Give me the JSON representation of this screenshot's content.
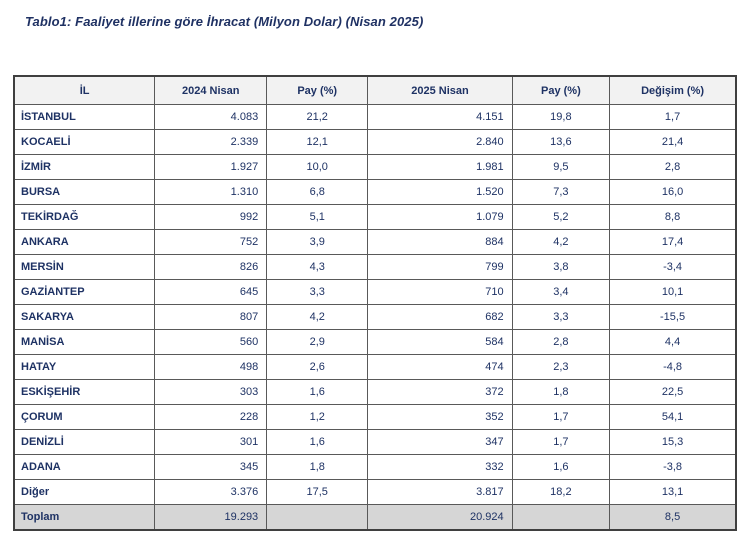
{
  "title": "Tablo1: Faaliyet illerine göre İhracat (Milyon Dolar) (Nisan 2025)",
  "table": {
    "columns": [
      "İL",
      "2024 Nisan",
      "Pay (%)",
      "2025 Nisan",
      "Pay (%)",
      "Değişim (%)"
    ],
    "rows": [
      [
        "İSTANBUL",
        "4.083",
        "21,2",
        "4.151",
        "19,8",
        "1,7"
      ],
      [
        "KOCAELİ",
        "2.339",
        "12,1",
        "2.840",
        "13,6",
        "21,4"
      ],
      [
        "İZMİR",
        "1.927",
        "10,0",
        "1.981",
        "9,5",
        "2,8"
      ],
      [
        "BURSA",
        "1.310",
        "6,8",
        "1.520",
        "7,3",
        "16,0"
      ],
      [
        "TEKİRDAĞ",
        "992",
        "5,1",
        "1.079",
        "5,2",
        "8,8"
      ],
      [
        "ANKARA",
        "752",
        "3,9",
        "884",
        "4,2",
        "17,4"
      ],
      [
        "MERSİN",
        "826",
        "4,3",
        "799",
        "3,8",
        "-3,4"
      ],
      [
        "GAZİANTEP",
        "645",
        "3,3",
        "710",
        "3,4",
        "10,1"
      ],
      [
        "SAKARYA",
        "807",
        "4,2",
        "682",
        "3,3",
        "-15,5"
      ],
      [
        "MANİSA",
        "560",
        "2,9",
        "584",
        "2,8",
        "4,4"
      ],
      [
        "HATAY",
        "498",
        "2,6",
        "474",
        "2,3",
        "-4,8"
      ],
      [
        "ESKİŞEHİR",
        "303",
        "1,6",
        "372",
        "1,8",
        "22,5"
      ],
      [
        "ÇORUM",
        "228",
        "1,2",
        "352",
        "1,7",
        "54,1"
      ],
      [
        "DENİZLİ",
        "301",
        "1,6",
        "347",
        "1,7",
        "15,3"
      ],
      [
        "ADANA",
        "345",
        "1,8",
        "332",
        "1,6",
        "-3,8"
      ],
      [
        "Diğer",
        "3.376",
        "17,5",
        "3.817",
        "18,2",
        "13,1"
      ]
    ],
    "total_row": [
      "Toplam",
      "19.293",
      "",
      "20.924",
      "",
      "8,5"
    ],
    "column_widths_pct": [
      19.5,
      15.5,
      14,
      20,
      13.5,
      17.5
    ],
    "colors": {
      "text": "#1e3264",
      "title": "#1f3163",
      "header_bg": "#f2f2f2",
      "total_bg": "#d6d6d6",
      "border": "#595959",
      "outer_border": "#3f3f3f"
    }
  },
  "chart_data": {
    "type": "table",
    "title": "Tablo1: Faaliyet illerine göre İhracat (Milyon Dolar) (Nisan 2025)",
    "columns": [
      "İL",
      "2024 Nisan",
      "Pay (%)",
      "2025 Nisan",
      "Pay (%)",
      "Değişim (%)"
    ],
    "rows": [
      [
        "İSTANBUL",
        4083,
        21.2,
        4151,
        19.8,
        1.7
      ],
      [
        "KOCAELİ",
        2339,
        12.1,
        2840,
        13.6,
        21.4
      ],
      [
        "İZMİR",
        1927,
        10.0,
        1981,
        9.5,
        2.8
      ],
      [
        "BURSA",
        1310,
        6.8,
        1520,
        7.3,
        16.0
      ],
      [
        "TEKİRDAĞ",
        992,
        5.1,
        1079,
        5.2,
        8.8
      ],
      [
        "ANKARA",
        752,
        3.9,
        884,
        4.2,
        17.4
      ],
      [
        "MERSİN",
        826,
        4.3,
        799,
        3.8,
        -3.4
      ],
      [
        "GAZİANTEP",
        645,
        3.3,
        710,
        3.4,
        10.1
      ],
      [
        "SAKARYA",
        807,
        4.2,
        682,
        3.3,
        -15.5
      ],
      [
        "MANİSA",
        560,
        2.9,
        584,
        2.8,
        4.4
      ],
      [
        "HATAY",
        498,
        2.6,
        474,
        2.3,
        -4.8
      ],
      [
        "ESKİŞEHİR",
        303,
        1.6,
        372,
        1.8,
        22.5
      ],
      [
        "ÇORUM",
        228,
        1.2,
        352,
        1.7,
        54.1
      ],
      [
        "DENİZLİ",
        301,
        1.6,
        347,
        1.7,
        15.3
      ],
      [
        "ADANA",
        345,
        1.8,
        332,
        1.6,
        -3.8
      ],
      [
        "Diğer",
        3376,
        17.5,
        3817,
        18.2,
        13.1
      ],
      [
        "Toplam",
        19293,
        null,
        20924,
        null,
        8.5
      ]
    ]
  }
}
